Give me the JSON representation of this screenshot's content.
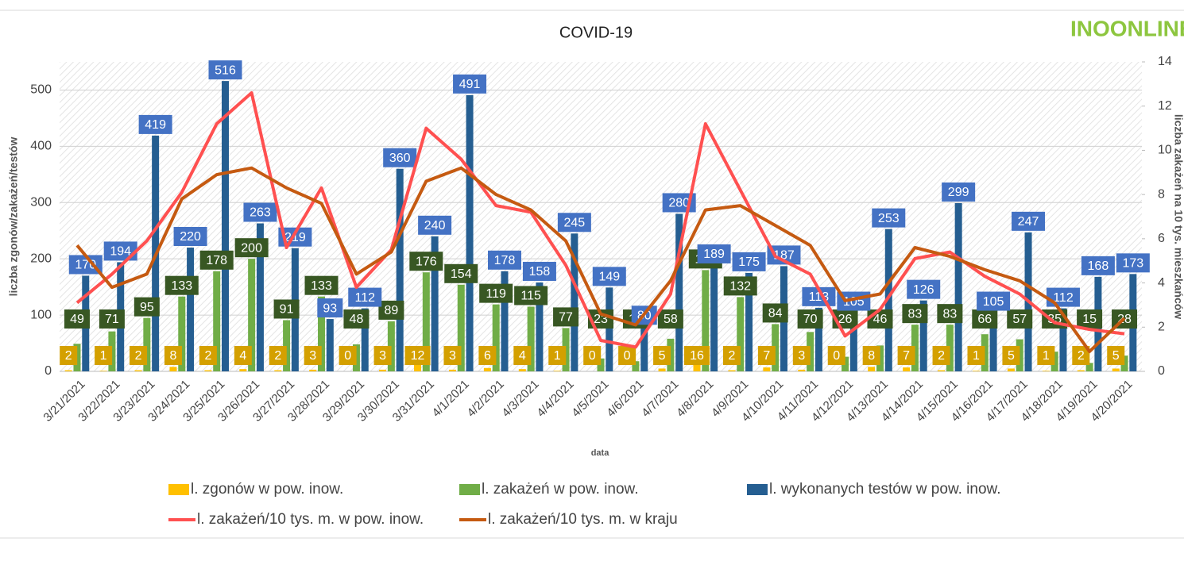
{
  "chart_data": {
    "type": "bar",
    "title": "COVID-19",
    "logo": "INOONLINE",
    "x_label": "data",
    "y_label": "liczba zgonów/zakażeń/testów",
    "y2_label": "liczba zakażeń na 10 tys. mieszkańców",
    "categories": [
      "3/21/2021",
      "3/22/2021",
      "3/23/2021",
      "3/24/2021",
      "3/25/2021",
      "3/26/2021",
      "3/27/2021",
      "3/28/2021",
      "3/29/2021",
      "3/30/2021",
      "3/31/2021",
      "4/1/2021",
      "4/2/2021",
      "4/3/2021",
      "4/4/2021",
      "4/5/2021",
      "4/6/2021",
      "4/7/2021",
      "4/8/2021",
      "4/9/2021",
      "4/10/2021",
      "4/11/2021",
      "4/12/2021",
      "4/13/2021",
      "4/14/2021",
      "4/15/2021",
      "4/16/2021",
      "4/17/2021",
      "4/18/2021",
      "4/19/2021",
      "4/20/2021"
    ],
    "series": [
      {
        "name": "l. zgonów w pow. inow.",
        "type": "bar",
        "color": "#ffc000",
        "label_color": "#d4a000",
        "label_text": "#ffffff",
        "values": [
          2,
          1,
          2,
          8,
          2,
          4,
          2,
          3,
          0,
          3,
          12,
          3,
          6,
          4,
          1,
          0,
          0,
          5,
          16,
          2,
          7,
          3,
          0,
          8,
          7,
          2,
          1,
          5,
          1,
          2,
          5
        ]
      },
      {
        "name": "l. zakażeń w pow. inow.",
        "type": "bar",
        "color": "#70ad47",
        "label_color": "#385723",
        "label_text": "#ffffff",
        "values": [
          49,
          71,
          95,
          133,
          178,
          200,
          91,
          133,
          48,
          89,
          176,
          154,
          119,
          115,
          77,
          23,
          18,
          58,
          180,
          132,
          84,
          70,
          26,
          46,
          83,
          83,
          66,
          57,
          35,
          15,
          28
        ]
      },
      {
        "name": "l. wykonanych testów w pow. inow.",
        "type": "bar",
        "color": "#255e91",
        "label_color": "#4472c4",
        "label_text": "#ffffff",
        "values": [
          170,
          194,
          419,
          220,
          516,
          263,
          219,
          93,
          112,
          360,
          240,
          491,
          178,
          158,
          245,
          149,
          80,
          280,
          189,
          175,
          187,
          113,
          105,
          253,
          126,
          299,
          105,
          247,
          112,
          168,
          173
        ]
      },
      {
        "name": "l. zakażeń/10 tys. m. w pow. inow.",
        "type": "line",
        "axis": "y2",
        "color": "#ff5050",
        "values": [
          3.1,
          4.4,
          5.9,
          8.1,
          11.2,
          12.6,
          5.6,
          8.3,
          3.8,
          5.5,
          11.0,
          9.6,
          7.5,
          7.2,
          4.8,
          1.4,
          1.1,
          3.5,
          11.2,
          8.2,
          5.2,
          4.4,
          1.6,
          2.8,
          5.1,
          5.4,
          4.3,
          3.5,
          2.2,
          1.9,
          1.7
        ]
      },
      {
        "name": "l. zakażeń/10 tys. m. w kraju",
        "type": "line",
        "axis": "y2",
        "color": "#c55a11",
        "values": [
          5.7,
          3.8,
          4.4,
          7.8,
          8.9,
          9.2,
          8.3,
          7.6,
          4.4,
          5.4,
          8.6,
          9.2,
          8.0,
          7.3,
          5.9,
          2.6,
          2.1,
          4.1,
          7.3,
          7.5,
          6.6,
          5.7,
          3.2,
          3.5,
          5.6,
          5.2,
          4.6,
          4.1,
          3.1,
          0.9,
          2.4
        ]
      }
    ],
    "ylim": [
      0,
      550
    ],
    "yticks": [
      0,
      100,
      200,
      300,
      400,
      500
    ],
    "y2lim": [
      0,
      14
    ],
    "y2ticks": [
      0,
      2,
      4,
      6,
      8,
      10,
      12,
      14
    ],
    "grid": true
  }
}
